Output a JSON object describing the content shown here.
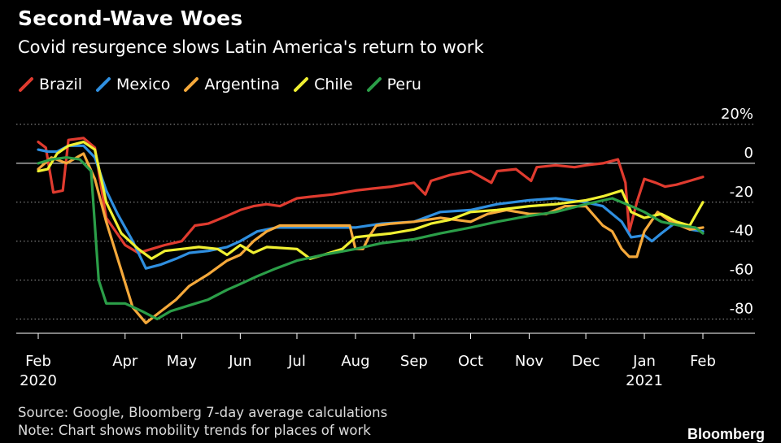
{
  "header": {
    "title": "Second-Wave Woes",
    "subtitle": "Covid resurgence slows Latin America's return to work"
  },
  "footer": {
    "source": "Source: Google, Bloomberg 7-day average calculations",
    "note": "Note: Chart shows mobility trends for places of work",
    "brand": "Bloomberg"
  },
  "chart_data": {
    "type": "line",
    "title": "Second-Wave Woes",
    "subtitle": "Covid resurgence slows Latin America's return to work",
    "ylim": [
      -88,
      20
    ],
    "y_ticks": [
      20,
      0,
      -20,
      -40,
      -60,
      -80
    ],
    "y_tick_labels": [
      "20%",
      "0",
      "-20",
      "-40",
      "-60",
      "-80"
    ],
    "x_range": [
      "2020-02-15",
      "2021-02-08"
    ],
    "x_ticks": [
      {
        "date": "2020-02-15",
        "label": "Feb",
        "sublabel": "2020"
      },
      {
        "date": "2020-04-01",
        "label": "Apr",
        "sublabel": ""
      },
      {
        "date": "2020-05-01",
        "label": "May",
        "sublabel": ""
      },
      {
        "date": "2020-06-01",
        "label": "Jun",
        "sublabel": ""
      },
      {
        "date": "2020-07-01",
        "label": "Jul",
        "sublabel": ""
      },
      {
        "date": "2020-08-01",
        "label": "Aug",
        "sublabel": ""
      },
      {
        "date": "2020-09-01",
        "label": "Sep",
        "sublabel": ""
      },
      {
        "date": "2020-10-01",
        "label": "Oct",
        "sublabel": ""
      },
      {
        "date": "2020-11-01",
        "label": "Nov",
        "sublabel": ""
      },
      {
        "date": "2020-12-01",
        "label": "Dec",
        "sublabel": ""
      },
      {
        "date": "2021-01-01",
        "label": "Jan",
        "sublabel": "2021"
      },
      {
        "date": "2021-02-01",
        "label": "Feb",
        "sublabel": ""
      }
    ],
    "grid": true,
    "legend_position": "top-left",
    "series": [
      {
        "name": "Brazil",
        "color": "#e03b2f",
        "points": [
          [
            "2020-02-15",
            11
          ],
          [
            "2020-02-19",
            8
          ],
          [
            "2020-02-23",
            -15
          ],
          [
            "2020-02-28",
            -14
          ],
          [
            "2020-03-02",
            12
          ],
          [
            "2020-03-10",
            13
          ],
          [
            "2020-03-16",
            8
          ],
          [
            "2020-03-22",
            -28
          ],
          [
            "2020-04-01",
            -42
          ],
          [
            "2020-04-08",
            -46
          ],
          [
            "2020-04-15",
            -44
          ],
          [
            "2020-04-22",
            -42
          ],
          [
            "2020-05-01",
            -40
          ],
          [
            "2020-05-08",
            -32
          ],
          [
            "2020-05-15",
            -31
          ],
          [
            "2020-05-25",
            -27
          ],
          [
            "2020-06-01",
            -24
          ],
          [
            "2020-06-08",
            -22
          ],
          [
            "2020-06-15",
            -21
          ],
          [
            "2020-06-22",
            -22
          ],
          [
            "2020-07-01",
            -18
          ],
          [
            "2020-07-10",
            -17
          ],
          [
            "2020-07-20",
            -16
          ],
          [
            "2020-08-01",
            -14
          ],
          [
            "2020-08-10",
            -13
          ],
          [
            "2020-08-20",
            -12
          ],
          [
            "2020-09-01",
            -10
          ],
          [
            "2020-09-07",
            -16
          ],
          [
            "2020-09-10",
            -9
          ],
          [
            "2020-09-20",
            -6
          ],
          [
            "2020-10-01",
            -4
          ],
          [
            "2020-10-12",
            -10
          ],
          [
            "2020-10-15",
            -4
          ],
          [
            "2020-10-25",
            -3
          ],
          [
            "2020-11-02",
            -9
          ],
          [
            "2020-11-05",
            -2
          ],
          [
            "2020-11-15",
            -1
          ],
          [
            "2020-11-25",
            -2
          ],
          [
            "2020-12-01",
            -1
          ],
          [
            "2020-12-10",
            0
          ],
          [
            "2020-12-18",
            2
          ],
          [
            "2020-12-22",
            -10
          ],
          [
            "2020-12-24",
            -35
          ],
          [
            "2020-12-28",
            -20
          ],
          [
            "2021-01-01",
            -8
          ],
          [
            "2021-01-07",
            -10
          ],
          [
            "2021-01-12",
            -12
          ],
          [
            "2021-01-18",
            -11
          ],
          [
            "2021-01-25",
            -9
          ],
          [
            "2021-02-01",
            -7
          ]
        ]
      },
      {
        "name": "Mexico",
        "color": "#2f8fe0",
        "points": [
          [
            "2020-02-15",
            7
          ],
          [
            "2020-02-20",
            6
          ],
          [
            "2020-02-25",
            6
          ],
          [
            "2020-03-02",
            9
          ],
          [
            "2020-03-10",
            9
          ],
          [
            "2020-03-16",
            3
          ],
          [
            "2020-03-22",
            -14
          ],
          [
            "2020-03-28",
            -26
          ],
          [
            "2020-04-05",
            -40
          ],
          [
            "2020-04-12",
            -54
          ],
          [
            "2020-04-20",
            -52
          ],
          [
            "2020-04-28",
            -49
          ],
          [
            "2020-05-05",
            -46
          ],
          [
            "2020-05-15",
            -45
          ],
          [
            "2020-05-25",
            -43
          ],
          [
            "2020-06-01",
            -40
          ],
          [
            "2020-06-10",
            -35
          ],
          [
            "2020-06-20",
            -33
          ],
          [
            "2020-07-01",
            -33
          ],
          [
            "2020-07-15",
            -33
          ],
          [
            "2020-08-01",
            -33
          ],
          [
            "2020-08-15",
            -31
          ],
          [
            "2020-09-01",
            -30
          ],
          [
            "2020-09-15",
            -25
          ],
          [
            "2020-10-01",
            -24
          ],
          [
            "2020-10-15",
            -21
          ],
          [
            "2020-11-01",
            -19
          ],
          [
            "2020-11-15",
            -18
          ],
          [
            "2020-12-01",
            -20
          ],
          [
            "2020-12-10",
            -22
          ],
          [
            "2020-12-20",
            -30
          ],
          [
            "2020-12-25",
            -38
          ],
          [
            "2021-01-01",
            -37
          ],
          [
            "2021-01-05",
            -40
          ],
          [
            "2021-01-10",
            -36
          ],
          [
            "2021-01-18",
            -30
          ],
          [
            "2021-01-25",
            -34
          ],
          [
            "2021-02-01",
            -35
          ]
        ]
      },
      {
        "name": "Argentina",
        "color": "#f5a93b",
        "points": [
          [
            "2020-02-15",
            -3
          ],
          [
            "2020-02-22",
            3
          ],
          [
            "2020-03-01",
            0
          ],
          [
            "2020-03-10",
            5
          ],
          [
            "2020-03-16",
            -8
          ],
          [
            "2020-03-22",
            -30
          ],
          [
            "2020-03-30",
            -55
          ],
          [
            "2020-04-05",
            -74
          ],
          [
            "2020-04-12",
            -82
          ],
          [
            "2020-04-20",
            -76
          ],
          [
            "2020-04-28",
            -70
          ],
          [
            "2020-05-05",
            -63
          ],
          [
            "2020-05-15",
            -57
          ],
          [
            "2020-05-25",
            -50
          ],
          [
            "2020-06-01",
            -47
          ],
          [
            "2020-06-08",
            -40
          ],
          [
            "2020-06-15",
            -35
          ],
          [
            "2020-06-22",
            -32
          ],
          [
            "2020-07-01",
            -32
          ],
          [
            "2020-07-15",
            -32
          ],
          [
            "2020-07-29",
            -32
          ],
          [
            "2020-08-01",
            -44
          ],
          [
            "2020-08-05",
            -44
          ],
          [
            "2020-08-08",
            -38
          ],
          [
            "2020-08-12",
            -32
          ],
          [
            "2020-08-20",
            -31
          ],
          [
            "2020-09-01",
            -30
          ],
          [
            "2020-09-15",
            -28
          ],
          [
            "2020-10-01",
            -30
          ],
          [
            "2020-10-10",
            -26
          ],
          [
            "2020-10-20",
            -24
          ],
          [
            "2020-11-01",
            -26
          ],
          [
            "2020-11-10",
            -26
          ],
          [
            "2020-11-20",
            -22
          ],
          [
            "2020-12-01",
            -22
          ],
          [
            "2020-12-10",
            -32
          ],
          [
            "2020-12-15",
            -35
          ],
          [
            "2020-12-20",
            -44
          ],
          [
            "2020-12-24",
            -48
          ],
          [
            "2020-12-28",
            -48
          ],
          [
            "2021-01-01",
            -35
          ],
          [
            "2021-01-08",
            -25
          ],
          [
            "2021-01-15",
            -30
          ],
          [
            "2021-01-25",
            -34
          ],
          [
            "2021-02-01",
            -33
          ]
        ]
      },
      {
        "name": "Chile",
        "color": "#f0f032",
        "points": [
          [
            "2020-02-15",
            -4
          ],
          [
            "2020-02-20",
            -3
          ],
          [
            "2020-02-25",
            5
          ],
          [
            "2020-03-02",
            9
          ],
          [
            "2020-03-10",
            11
          ],
          [
            "2020-03-16",
            7
          ],
          [
            "2020-03-22",
            -20
          ],
          [
            "2020-03-30",
            -36
          ],
          [
            "2020-04-08",
            -44
          ],
          [
            "2020-04-15",
            -49
          ],
          [
            "2020-04-22",
            -45
          ],
          [
            "2020-05-01",
            -44
          ],
          [
            "2020-05-10",
            -43
          ],
          [
            "2020-05-20",
            -44
          ],
          [
            "2020-05-25",
            -47
          ],
          [
            "2020-06-01",
            -42
          ],
          [
            "2020-06-08",
            -46
          ],
          [
            "2020-06-15",
            -43
          ],
          [
            "2020-07-01",
            -44
          ],
          [
            "2020-07-08",
            -49
          ],
          [
            "2020-07-15",
            -47
          ],
          [
            "2020-07-25",
            -44
          ],
          [
            "2020-08-01",
            -38
          ],
          [
            "2020-08-10",
            -37
          ],
          [
            "2020-08-20",
            -36
          ],
          [
            "2020-09-01",
            -34
          ],
          [
            "2020-09-10",
            -31
          ],
          [
            "2020-09-20",
            -29
          ],
          [
            "2020-10-01",
            -25
          ],
          [
            "2020-10-15",
            -24
          ],
          [
            "2020-11-01",
            -22
          ],
          [
            "2020-11-15",
            -21
          ],
          [
            "2020-12-01",
            -19
          ],
          [
            "2020-12-10",
            -17
          ],
          [
            "2020-12-20",
            -14
          ],
          [
            "2020-12-25",
            -25
          ],
          [
            "2021-01-01",
            -28
          ],
          [
            "2021-01-10",
            -26
          ],
          [
            "2021-01-18",
            -30
          ],
          [
            "2021-01-25",
            -32
          ],
          [
            "2021-02-01",
            -20
          ]
        ]
      },
      {
        "name": "Peru",
        "color": "#2b9e48",
        "points": [
          [
            "2020-02-15",
            0
          ],
          [
            "2020-02-22",
            2
          ],
          [
            "2020-03-01",
            3
          ],
          [
            "2020-03-08",
            2
          ],
          [
            "2020-03-14",
            -4
          ],
          [
            "2020-03-18",
            -60
          ],
          [
            "2020-03-22",
            -72
          ],
          [
            "2020-04-01",
            -72
          ],
          [
            "2020-04-10",
            -76
          ],
          [
            "2020-04-18",
            -80
          ],
          [
            "2020-04-25",
            -76
          ],
          [
            "2020-05-05",
            -73
          ],
          [
            "2020-05-15",
            -70
          ],
          [
            "2020-05-25",
            -65
          ],
          [
            "2020-06-01",
            -62
          ],
          [
            "2020-06-10",
            -58
          ],
          [
            "2020-06-20",
            -54
          ],
          [
            "2020-07-01",
            -50
          ],
          [
            "2020-07-15",
            -47
          ],
          [
            "2020-08-01",
            -44
          ],
          [
            "2020-08-15",
            -41
          ],
          [
            "2020-09-01",
            -39
          ],
          [
            "2020-09-15",
            -36
          ],
          [
            "2020-10-01",
            -33
          ],
          [
            "2020-10-15",
            -30
          ],
          [
            "2020-11-01",
            -27
          ],
          [
            "2020-11-15",
            -25
          ],
          [
            "2020-12-01",
            -21
          ],
          [
            "2020-12-15",
            -18
          ],
          [
            "2020-12-25",
            -22
          ],
          [
            "2021-01-01",
            -25
          ],
          [
            "2021-01-10",
            -30
          ],
          [
            "2021-01-20",
            -32
          ],
          [
            "2021-01-28",
            -33
          ],
          [
            "2021-02-01",
            -36
          ]
        ]
      }
    ]
  }
}
